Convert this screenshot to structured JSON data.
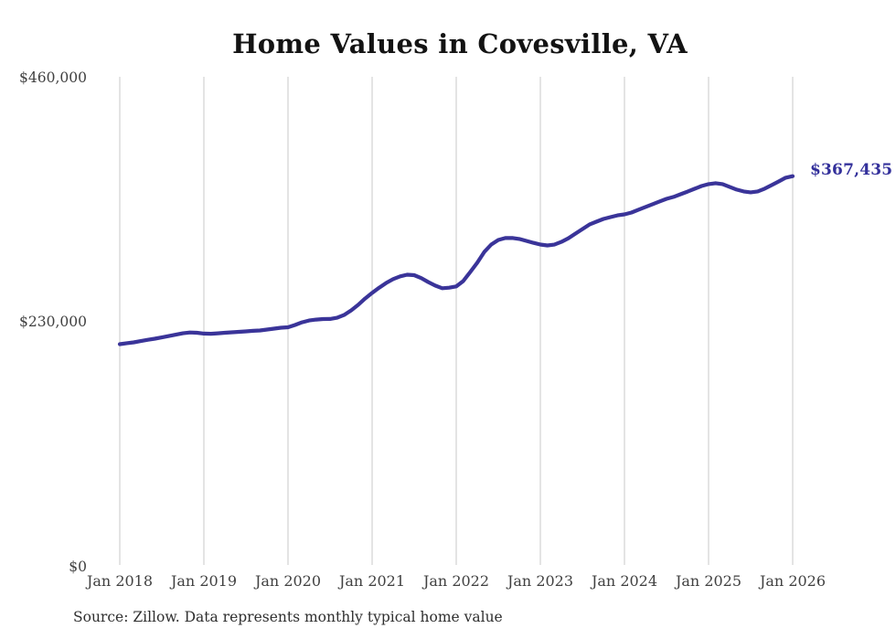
{
  "title": "Home Values in Covesville, VA",
  "source_note": "Source: Zillow. Data represents monthly typical home value",
  "colors": {
    "line": "#3a3499",
    "end_label_text": "#33309b",
    "grid": "#c9c9c9",
    "tick_text": "#414141",
    "title_text": "#131313",
    "background": "#ffffff"
  },
  "chart_data": {
    "type": "line",
    "title": "Home Values in Covesville, VA",
    "xlabel": "",
    "ylabel": "",
    "legend": "none",
    "grid": "vertical-only",
    "ylim": [
      0,
      460000
    ],
    "y_ticks": [
      {
        "label": "$460,000",
        "value": 460000
      },
      {
        "label": "$230,000",
        "value": 230000
      },
      {
        "label": "$0",
        "value": 0
      }
    ],
    "x_tick_labels": [
      "Jan 2018",
      "Jan 2019",
      "Jan 2020",
      "Jan 2021",
      "Jan 2022",
      "Jan 2023",
      "Jan 2024",
      "Jan 2025",
      "Jan 2026"
    ],
    "end_label": "$367,435",
    "latest_value": 367435,
    "series": [
      {
        "name": "Typical home value",
        "frequency": "monthly",
        "start_month": "2018-01",
        "end_month": "2026-01",
        "values": [
          209400,
          210300,
          211100,
          212300,
          213500,
          214500,
          215700,
          217000,
          218300,
          219600,
          220400,
          220100,
          219300,
          219200,
          219600,
          220100,
          220500,
          221000,
          221400,
          221900,
          222300,
          223100,
          224000,
          224800,
          225300,
          227400,
          229900,
          231600,
          232500,
          233000,
          233100,
          234200,
          236800,
          241100,
          246300,
          252300,
          257600,
          262500,
          266900,
          270600,
          273200,
          274700,
          274300,
          271500,
          267800,
          264500,
          262000,
          262500,
          263700,
          268800,
          277200,
          286000,
          296100,
          303100,
          307400,
          309200,
          309300,
          308300,
          306500,
          304700,
          303100,
          302200,
          303000,
          305600,
          309000,
          313300,
          317600,
          321900,
          324600,
          327200,
          328900,
          330500,
          331500,
          333200,
          335800,
          338400,
          341000,
          343600,
          346100,
          347900,
          350400,
          352900,
          355500,
          358100,
          359900,
          360800,
          359900,
          357300,
          354800,
          353000,
          352200,
          353000,
          355600,
          359000,
          362400,
          365900,
          367435
        ]
      }
    ]
  }
}
